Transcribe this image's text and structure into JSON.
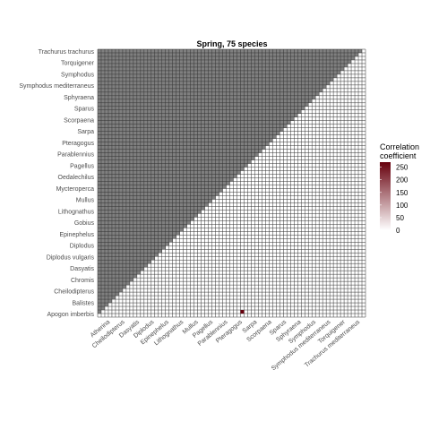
{
  "chart_data": {
    "type": "heatmap",
    "title": "Spring, 75 species",
    "xlabel": "",
    "ylabel": "",
    "n_species": 75,
    "grid": true,
    "masked_triangle": "upper",
    "masked_color": "#7f7f7f",
    "cell_fill": "#ffffff",
    "cell_border": "#333333",
    "legend_position": "right",
    "legend": {
      "title_lines": [
        "Correlation",
        "coefficient"
      ],
      "min": 0,
      "max": 270,
      "ticks": [
        0,
        50,
        100,
        150,
        200,
        250
      ],
      "low_color": "#ffffff",
      "high_color": "#67000d"
    },
    "y_labels_visible": [
      "Trachurus trachurus",
      "Torquigener",
      "Symphodus",
      "Symphodus mediterraneus",
      "Sphyraena",
      "Sparus",
      "Scorpaena",
      "Sarpa",
      "Pteragogus",
      "Parablennius",
      "Pagellus",
      "Oedalechilus",
      "Mycteroperca",
      "Mullus",
      "Lithognathus",
      "Gobius",
      "Epinephelus",
      "Diplodus",
      "Diplodus vulgaris",
      "Dasyatis",
      "Chromis",
      "Cheilodipterus",
      "Balistes",
      "Apogon imberbis"
    ],
    "x_labels_visible": [
      "Atherina",
      "Cheilodipterus",
      "Dasyatis",
      "Diplodus",
      "Epinephelus",
      "Lithognathus",
      "Mullus",
      "Pagellus",
      "Parablennius",
      "Pteragogus",
      "Sarpa",
      "Scorpaena",
      "Sparus",
      "Sphyraena",
      "Symphodus",
      "Symphodus mediterraneus",
      "Torquigener",
      "Trachurus mediterraneus"
    ],
    "highlighted_cells": [
      {
        "row_from_bottom": 1,
        "col": 40,
        "value": 270
      }
    ]
  }
}
